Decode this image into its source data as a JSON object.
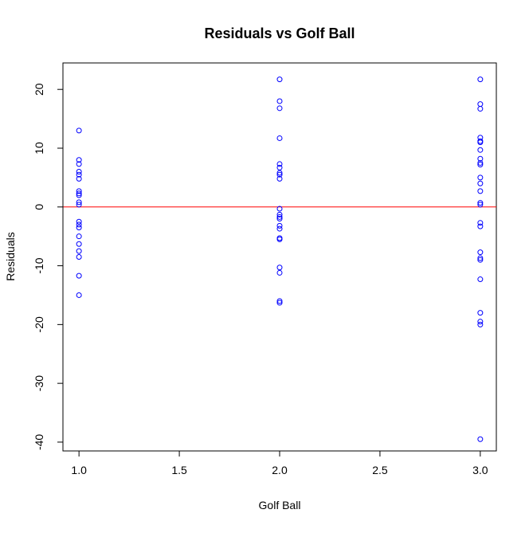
{
  "chart_data": {
    "type": "scatter",
    "title": "Residuals vs Golf Ball",
    "xlabel": "Golf Ball",
    "ylabel": "Residuals",
    "xlim": [
      0.92,
      3.08
    ],
    "ylim": [
      -41.5,
      24.5
    ],
    "x_ticks": [
      1.0,
      1.5,
      2.0,
      2.5,
      3.0
    ],
    "x_tick_labels": [
      "1.0",
      "1.5",
      "2.0",
      "2.5",
      "3.0"
    ],
    "y_ticks": [
      -40,
      -30,
      -20,
      -10,
      0,
      10,
      20
    ],
    "y_tick_labels": [
      "-40",
      "-30",
      "-20",
      "-10",
      "0",
      "10",
      "20"
    ],
    "grid": false,
    "legend": "none",
    "reference_line": {
      "y": 0,
      "color": "#ff0000"
    },
    "point_color": "#0000ff",
    "series": [
      {
        "points": [
          [
            1.0,
            13.0
          ],
          [
            1.0,
            8.0
          ],
          [
            1.0,
            7.3
          ],
          [
            1.0,
            6.0
          ],
          [
            1.0,
            5.5
          ],
          [
            1.0,
            4.8
          ],
          [
            1.0,
            2.7
          ],
          [
            1.0,
            2.3
          ],
          [
            1.0,
            2.0
          ],
          [
            1.0,
            0.8
          ],
          [
            1.0,
            0.4
          ],
          [
            1.0,
            -2.5
          ],
          [
            1.0,
            -3.0
          ],
          [
            1.0,
            -3.5
          ],
          [
            1.0,
            -5.0
          ],
          [
            1.0,
            -6.3
          ],
          [
            1.0,
            -7.5
          ],
          [
            1.0,
            -8.5
          ],
          [
            1.0,
            -11.7
          ],
          [
            1.0,
            -15.0
          ],
          [
            2.0,
            21.7
          ],
          [
            2.0,
            18.0
          ],
          [
            2.0,
            16.8
          ],
          [
            2.0,
            11.7
          ],
          [
            2.0,
            7.3
          ],
          [
            2.0,
            6.7
          ],
          [
            2.0,
            5.8
          ],
          [
            2.0,
            5.5
          ],
          [
            2.0,
            4.8
          ],
          [
            2.0,
            -0.3
          ],
          [
            2.0,
            -1.3
          ],
          [
            2.0,
            -1.7
          ],
          [
            2.0,
            -2.0
          ],
          [
            2.0,
            -3.2
          ],
          [
            2.0,
            -3.7
          ],
          [
            2.0,
            -5.3
          ],
          [
            2.0,
            -5.5
          ],
          [
            2.0,
            -10.3
          ],
          [
            2.0,
            -11.2
          ],
          [
            2.0,
            -16.0
          ],
          [
            2.0,
            -16.3
          ],
          [
            3.0,
            21.7
          ],
          [
            3.0,
            17.5
          ],
          [
            3.0,
            16.7
          ],
          [
            3.0,
            11.8
          ],
          [
            3.0,
            11.2
          ],
          [
            3.0,
            11.0
          ],
          [
            3.0,
            9.7
          ],
          [
            3.0,
            8.2
          ],
          [
            3.0,
            7.5
          ],
          [
            3.0,
            7.2
          ],
          [
            3.0,
            5.0
          ],
          [
            3.0,
            4.0
          ],
          [
            3.0,
            2.7
          ],
          [
            3.0,
            0.7
          ],
          [
            3.0,
            0.4
          ],
          [
            3.0,
            -2.7
          ],
          [
            3.0,
            -3.3
          ],
          [
            3.0,
            -7.7
          ],
          [
            3.0,
            -8.7
          ],
          [
            3.0,
            -9.0
          ],
          [
            3.0,
            -12.3
          ],
          [
            3.0,
            -18.0
          ],
          [
            3.0,
            -19.5
          ],
          [
            3.0,
            -20.0
          ],
          [
            3.0,
            -39.5
          ]
        ]
      }
    ]
  }
}
